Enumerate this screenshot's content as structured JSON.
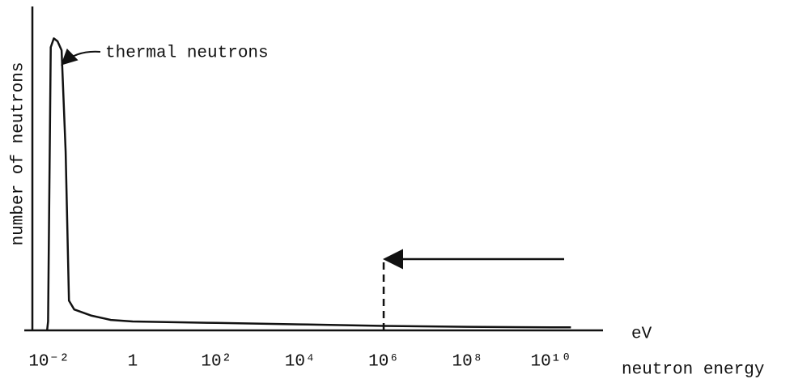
{
  "chart_data": {
    "type": "line",
    "y_label": "number of neutrons",
    "x_label": "neutron energy",
    "x_unit": "eV",
    "annotation": "thermal neutrons",
    "log_x": true,
    "xlim": [
      0.004,
      140000000000
    ],
    "ylim": [
      0,
      100
    ],
    "xticks": [
      {
        "value": 0.01,
        "label": "10⁻²"
      },
      1,
      {
        "value": 100,
        "label": "10²"
      },
      {
        "value": 10000,
        "label": "10⁴"
      },
      {
        "value": 1000000,
        "label": "10⁶"
      },
      {
        "value": 100000000,
        "label": "10⁸"
      },
      {
        "value": 10000000000,
        "label": "10¹⁰"
      }
    ],
    "marker_x": 1000000,
    "color": "#111111",
    "x": [
      0.009,
      0.0095,
      0.011,
      0.013,
      0.016,
      0.02,
      0.025,
      0.03,
      0.04,
      0.1,
      0.3,
      1,
      100,
      10000,
      1000000,
      100000000,
      10000000000,
      30000000000
    ],
    "values": [
      0,
      3,
      95,
      98,
      97,
      94,
      60,
      10,
      7,
      5,
      3.5,
      3,
      2.5,
      2,
      1.5,
      1.2,
      1,
      1
    ]
  }
}
